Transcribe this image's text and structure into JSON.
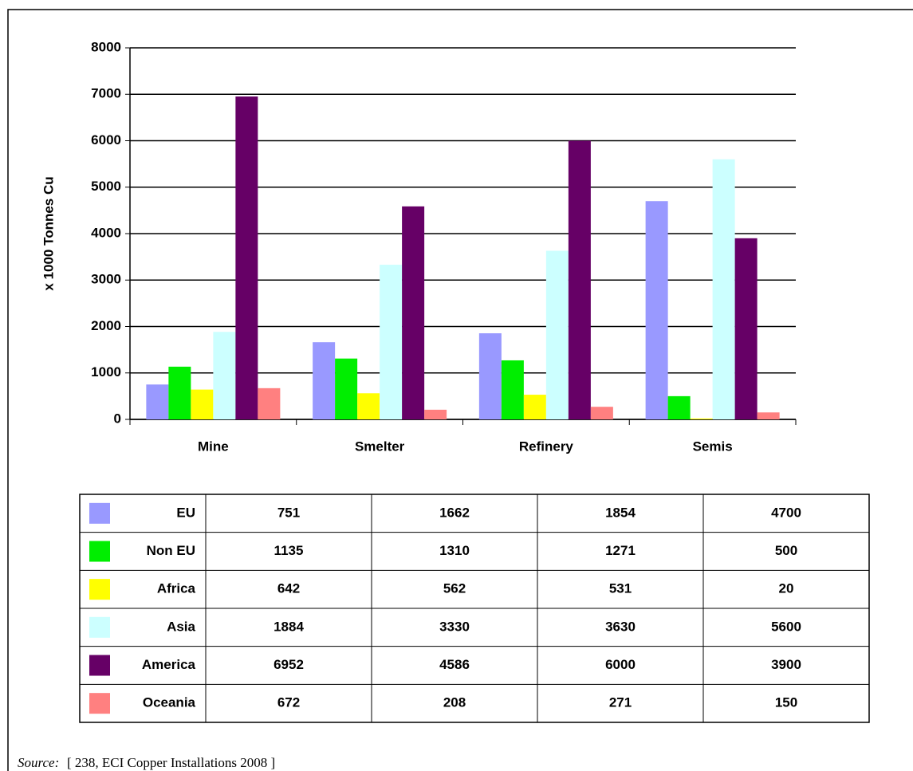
{
  "chart_data": {
    "type": "bar",
    "y_label": "x 1000 Tonnes Cu",
    "categories": [
      "Mine",
      "Smelter",
      "Refinery",
      "Semis"
    ],
    "series": [
      {
        "name": "EU",
        "color": "#9999ff",
        "values": [
          751,
          1662,
          1854,
          4700
        ]
      },
      {
        "name": "Non EU",
        "color": "#00ee00",
        "values": [
          1135,
          1310,
          1271,
          500
        ]
      },
      {
        "name": "Africa",
        "color": "#ffff00",
        "values": [
          642,
          562,
          531,
          20
        ]
      },
      {
        "name": "Asia",
        "color": "#ccffff",
        "values": [
          1884,
          3330,
          3630,
          5600
        ]
      },
      {
        "name": "America",
        "color": "#660066",
        "values": [
          6952,
          4586,
          6000,
          3900
        ]
      },
      {
        "name": "Oceania",
        "color": "#ff8080",
        "values": [
          672,
          208,
          271,
          150
        ]
      }
    ],
    "ylim": [
      0,
      8000
    ],
    "yticks": [
      0,
      1000,
      2000,
      3000,
      4000,
      5000,
      6000,
      7000,
      8000
    ],
    "grid": true
  },
  "source": {
    "label": "Source:",
    "text": "[ 238, ECI Copper Installations 2008 ]"
  }
}
